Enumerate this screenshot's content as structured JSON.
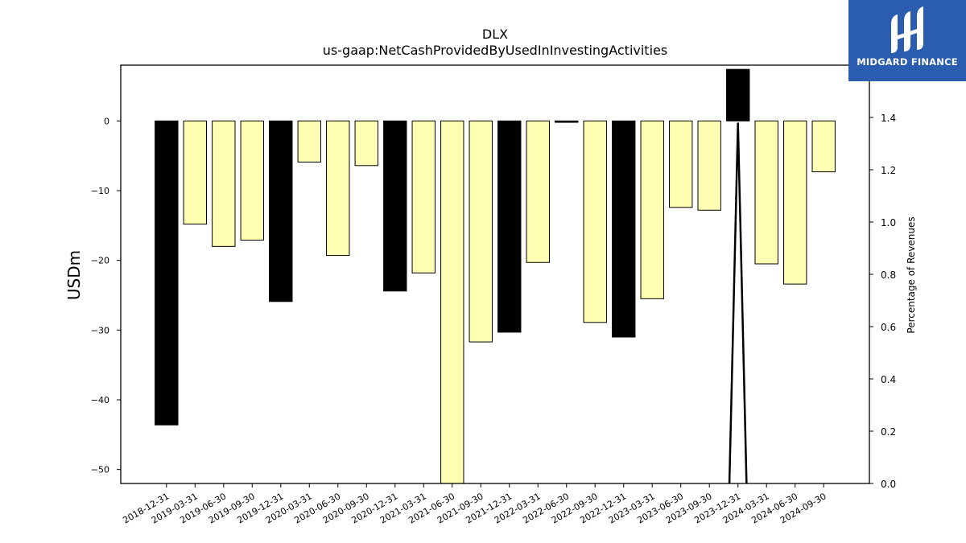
{
  "chart_data": {
    "type": "bar",
    "title": "DLX",
    "subtitle": "us-gaap:NetCashProvidedByUsedInInvestingActivities",
    "ylabel": "USDm",
    "y2label": "Percentage of Revenues",
    "ylim": [
      -52,
      8
    ],
    "y2lim": [
      0.0,
      1.6
    ],
    "yticks": [
      0,
      -10,
      -20,
      -30,
      -40,
      -50
    ],
    "y2ticks": [
      "0.0",
      "0.2",
      "0.4",
      "0.6",
      "0.8",
      "1.0",
      "1.2",
      "1.4"
    ],
    "categories": [
      "2018-12-31",
      "2019-03-31",
      "2019-06-30",
      "2019-09-30",
      "2019-12-31",
      "2020-03-31",
      "2020-06-30",
      "2020-09-30",
      "2020-12-31",
      "2021-03-31",
      "2021-06-30",
      "2021-09-30",
      "2021-12-31",
      "2022-03-31",
      "2022-06-30",
      "2022-09-30",
      "2022-12-31",
      "2023-03-31",
      "2023-06-30",
      "2023-09-30",
      "2023-12-31",
      "2024-03-31",
      "2024-06-30",
      "2024-09-30"
    ],
    "values": [
      -43.6,
      -14.8,
      -18.0,
      -17.1,
      -25.9,
      -5.9,
      -19.3,
      -6.4,
      -24.4,
      -21.8,
      -52.0,
      -31.7,
      -30.3,
      -20.3,
      -0.2,
      -28.9,
      -31.0,
      -25.5,
      -12.4,
      -12.8,
      7.4,
      -20.5,
      -23.4,
      -7.3
    ],
    "bar_colors": [
      "#000000",
      "#ffffb3",
      "#ffffb3",
      "#ffffb3",
      "#000000",
      "#ffffb3",
      "#ffffb3",
      "#ffffb3",
      "#000000",
      "#ffffb3",
      "#ffffb3",
      "#ffffb3",
      "#000000",
      "#ffffb3",
      "#000000",
      "#ffffb3",
      "#000000",
      "#ffffb3",
      "#ffffb3",
      "#ffffb3",
      "#000000",
      "#ffffb3",
      "#ffffb3",
      "#ffffb3"
    ],
    "line_series": {
      "x_index": [
        19.7,
        20.0,
        20.3
      ],
      "values": [
        0.0,
        1.38,
        0.0
      ]
    },
    "grid": false,
    "legend": "none"
  },
  "logo": {
    "text": "MIDGARD FINANCE",
    "color": "#2a5db0"
  }
}
